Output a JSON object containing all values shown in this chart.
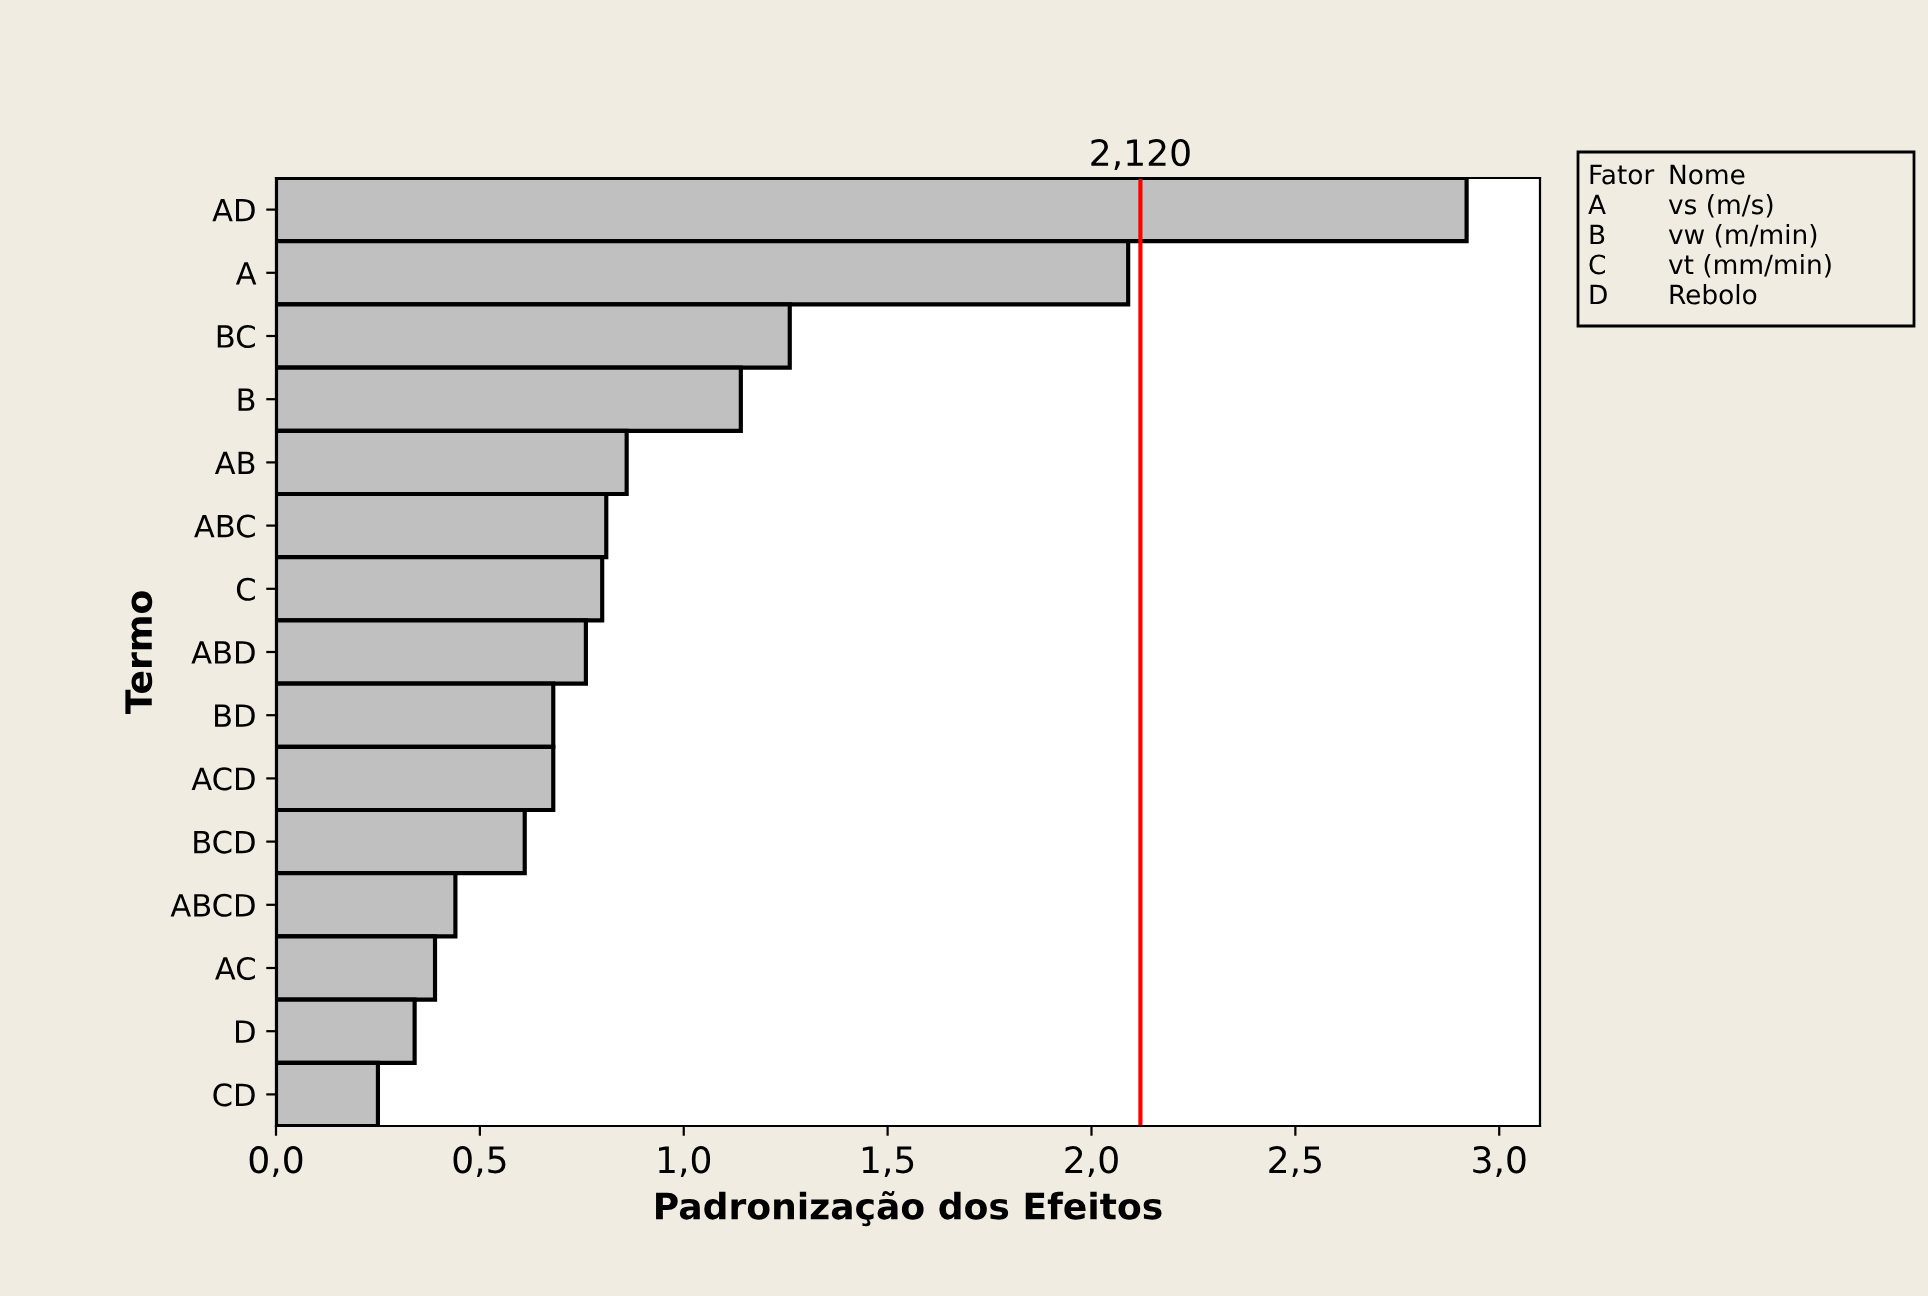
{
  "chart_data": {
    "type": "bar",
    "orientation": "horizontal",
    "xlabel": "Padronização dos Efeitos",
    "ylabel": "Termo",
    "categories": [
      "AD",
      "A",
      "BC",
      "B",
      "AB",
      "ABC",
      "C",
      "ABD",
      "BD",
      "ACD",
      "BCD",
      "ABCD",
      "AC",
      "D",
      "CD"
    ],
    "values": [
      2.92,
      2.09,
      1.26,
      1.14,
      0.86,
      0.81,
      0.8,
      0.76,
      0.68,
      0.68,
      0.61,
      0.44,
      0.39,
      0.34,
      0.25
    ],
    "color": "#c0c0c0",
    "xlim": [
      0,
      3.1
    ],
    "xticks": [
      {
        "value": 0,
        "label": "0,0"
      },
      {
        "value": 0.5,
        "label": "0,5"
      },
      {
        "value": 1,
        "label": "1,0"
      },
      {
        "value": 1.5,
        "label": "1,5"
      },
      {
        "value": 2,
        "label": "2,0"
      },
      {
        "value": 2.5,
        "label": "2,5"
      },
      {
        "value": 3,
        "label": "3,0"
      }
    ],
    "ref_lines": [
      {
        "axis": "x",
        "value": 2.12,
        "label": "2,120",
        "color": "#ff0000"
      }
    ],
    "annotations": [
      "Fator",
      "Nome",
      "A",
      "vs (m/s)",
      "B",
      "vw (m/min)",
      "C",
      "vt (mm/min)",
      "D",
      "Rebolo"
    ],
    "grid": false,
    "legend": false
  }
}
